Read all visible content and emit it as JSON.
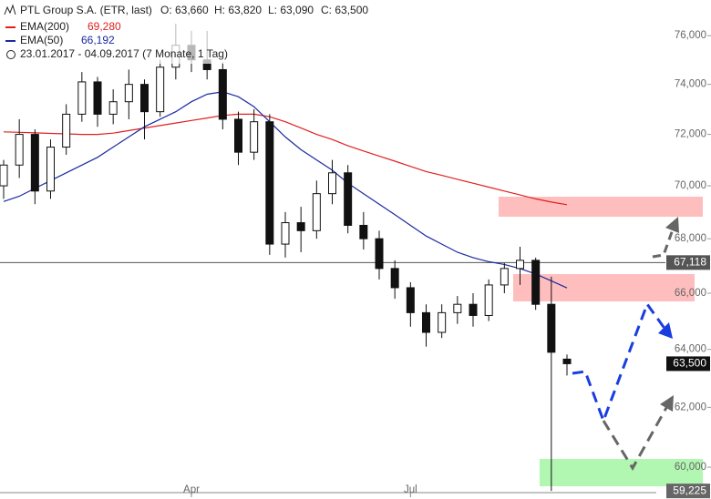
{
  "chart_data": {
    "type": "candlestick",
    "title": "PTL Group S.A. (ETR, last)",
    "info": [
      "O: 63,660",
      "H: 63,820",
      "L: 63,090",
      "C: 63,500"
    ],
    "range": "23.01.2017 - 04.09.2017 (7 Monate, 1 Tag)",
    "categories": [
      null,
      null,
      null,
      null,
      null,
      null,
      null,
      null,
      null,
      null,
      null,
      null,
      "Apr",
      null,
      null,
      null,
      null,
      null,
      null,
      null,
      null,
      null,
      null,
      null,
      null,
      null,
      "Jul",
      null,
      null,
      null,
      null,
      null,
      null,
      null,
      null,
      null,
      null
    ],
    "open": [
      70000,
      70800,
      72000,
      69800,
      71500,
      72800,
      74100,
      72800,
      73300,
      74000,
      72900,
      74700,
      75600,
      75000,
      74600,
      72600,
      71300,
      72500,
      67800,
      68600,
      68300,
      69700,
      70500,
      68500,
      68000,
      66900,
      66200,
      65300,
      64600,
      65300,
      65600,
      65200,
      66300,
      66900,
      67200,
      65600,
      63660
    ],
    "high": [
      71000,
      72600,
      72200,
      71800,
      73200,
      74500,
      74300,
      73800,
      74600,
      74200,
      75000,
      76500,
      76200,
      76200,
      74900,
      72900,
      73000,
      72800,
      69000,
      69200,
      70200,
      71000,
      70800,
      69000,
      68300,
      67200,
      66400,
      65600,
      65600,
      65900,
      66000,
      66500,
      67100,
      67700,
      67300,
      66600,
      63820
    ],
    "low": [
      69500,
      70300,
      69300,
      69500,
      71200,
      72500,
      72300,
      72400,
      72600,
      71800,
      72700,
      74200,
      74500,
      74200,
      72200,
      70800,
      71000,
      67400,
      67300,
      67500,
      68000,
      69300,
      68200,
      67600,
      66500,
      65800,
      64800,
      64100,
      64400,
      64900,
      64800,
      65000,
      66000,
      66300,
      65400,
      59225,
      63090
    ],
    "close": [
      70800,
      72000,
      69800,
      71500,
      72800,
      74100,
      72800,
      73300,
      74000,
      72900,
      74700,
      75600,
      75000,
      74600,
      72600,
      71300,
      72500,
      67800,
      68600,
      68300,
      69700,
      70500,
      68500,
      68000,
      66900,
      66200,
      65300,
      64600,
      65300,
      65600,
      65200,
      66300,
      66900,
      67200,
      65600,
      63900,
      63500
    ],
    "series": [
      {
        "name": "EMA(200)",
        "color": "#e02020",
        "last_label": "69,280",
        "values": [
          72100,
          72080,
          72060,
          72040,
          72020,
          72000,
          72000,
          72050,
          72150,
          72250,
          72350,
          72450,
          72550,
          72650,
          72750,
          72800,
          72800,
          72700,
          72500,
          72250,
          72000,
          71800,
          71550,
          71350,
          71150,
          70950,
          70750,
          70550,
          70400,
          70250,
          70100,
          69950,
          69800,
          69650,
          69500,
          69380,
          69280
        ]
      },
      {
        "name": "EMA(50)",
        "color": "#1a2aa0",
        "last_label": "66,192",
        "values": [
          69400,
          69600,
          69900,
          70200,
          70500,
          70800,
          71100,
          71500,
          71900,
          72300,
          72600,
          72900,
          73300,
          73600,
          73700,
          73500,
          73100,
          72500,
          71900,
          71400,
          71000,
          70600,
          70100,
          69700,
          69300,
          68900,
          68500,
          68100,
          67800,
          67500,
          67300,
          67150,
          67050,
          66900,
          66700,
          66450,
          66192
        ]
      }
    ],
    "log_scale": true,
    "ylim": [
      59200,
      77500
    ],
    "yticks": [
      {
        "value": 60000,
        "label": "60,000"
      },
      {
        "value": 62000,
        "label": "62,000"
      },
      {
        "value": 64000,
        "label": "64,000"
      },
      {
        "value": 66000,
        "label": "66,000"
      },
      {
        "value": 68000,
        "label": "68,000"
      },
      {
        "value": 70000,
        "label": "70,000"
      },
      {
        "value": 72000,
        "label": "72,000"
      },
      {
        "value": 74000,
        "label": "74,000"
      },
      {
        "value": 76000,
        "label": "76,000"
      }
    ],
    "markers": [
      {
        "value": 67118,
        "label": "67,118",
        "line": true,
        "color": "#555555"
      },
      {
        "value": 63500,
        "label": "63,500",
        "line": false,
        "color": "#111111"
      },
      {
        "value": 59225,
        "label": "59,225",
        "line": false,
        "color": "#666666"
      }
    ]
  }
}
